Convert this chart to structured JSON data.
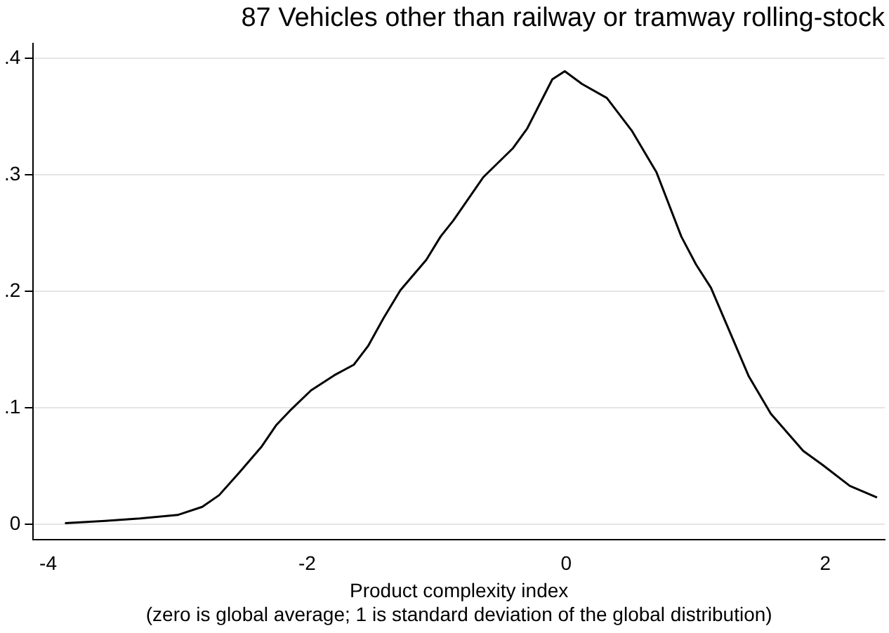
{
  "chart_data": {
    "type": "line",
    "title": "87 Vehicles other than railway or tramway rolling-stock",
    "xlabel": "Product complexity index\n(zero is global average; 1 is standard deviation of the global distribution)",
    "x": [
      -3.87,
      -3.56,
      -3.29,
      -3.0,
      -2.81,
      -2.68,
      -2.52,
      -2.35,
      -2.24,
      -2.12,
      -1.97,
      -1.79,
      -1.64,
      -1.53,
      -1.41,
      -1.28,
      -1.08,
      -0.97,
      -0.87,
      -0.64,
      -0.41,
      -0.3,
      -0.107,
      -0.011,
      0.123,
      0.314,
      0.506,
      0.698,
      0.889,
      1.003,
      1.118,
      1.31,
      1.41,
      1.58,
      1.83,
      1.98,
      2.19,
      2.4
    ],
    "series": [
      {
        "color": "#000000",
        "values": [
          0.001,
          0.003,
          0.005,
          0.008,
          0.015,
          0.025,
          0.045,
          0.067,
          0.085,
          0.099,
          0.115,
          0.128,
          0.137,
          0.153,
          0.177,
          0.201,
          0.227,
          0.247,
          0.261,
          0.298,
          0.323,
          0.34,
          0.382,
          0.389,
          0.378,
          0.366,
          0.338,
          0.302,
          0.247,
          0.223,
          0.203,
          0.153,
          0.127,
          0.095,
          0.063,
          0.051,
          0.033,
          0.023
        ]
      }
    ],
    "xlim": [
      -4.115,
      2.46
    ],
    "xticks": [
      -4,
      -2,
      0,
      2
    ],
    "ylim": [
      -0.0133,
      0.413
    ],
    "yticks": [
      {
        "value": 0,
        "label": "0"
      },
      {
        "value": 0.1,
        "label": ".1"
      },
      {
        "value": 0.2,
        "label": ".2"
      },
      {
        "value": 0.3,
        "label": ".3"
      },
      {
        "value": 0.4,
        "label": ".4"
      }
    ],
    "grid": "y",
    "marker": "none",
    "line_style": "solid",
    "legend": false
  }
}
